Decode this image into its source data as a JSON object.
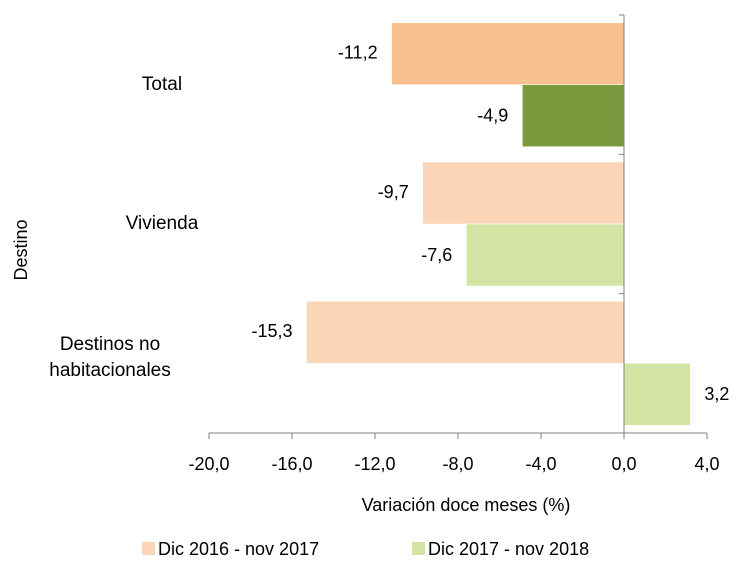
{
  "chart_data": {
    "type": "hbar",
    "categories": [
      "Total",
      "Vivienda",
      "Destinos no habitacionales"
    ],
    "series": [
      {
        "name": "Dic 2016 - nov 2017",
        "color": "#FBD5B5",
        "colors": [
          "#F9C08F",
          "#FBD5B5",
          "#FBD5B5"
        ],
        "values": [
          -11.2,
          -9.7,
          -15.3
        ],
        "value_labels": [
          "-11,2",
          "-9,7",
          "-15,3"
        ]
      },
      {
        "name": "Dic 2017 - nov 2018",
        "color": "#D3E4A5",
        "colors": [
          "#7A9A3E",
          "#D3E4A5",
          "#D3E4A5"
        ],
        "values": [
          -4.9,
          -7.6,
          3.2
        ],
        "value_labels": [
          "-4,9",
          "-7,6",
          "3,2"
        ]
      }
    ],
    "xlim": [
      -20,
      4
    ],
    "xticks": [
      {
        "value": -20,
        "label": "-20,0"
      },
      {
        "value": -16,
        "label": "-16,0"
      },
      {
        "value": -12,
        "label": "-12,0"
      },
      {
        "value": -8,
        "label": "-8,0"
      },
      {
        "value": -4,
        "label": "-4,0"
      },
      {
        "value": 0,
        "label": "0,0"
      },
      {
        "value": 4,
        "label": "4,0"
      }
    ],
    "x_label": "Variación doce meses (%)",
    "y_label": "Destino",
    "legend": "bottom"
  }
}
